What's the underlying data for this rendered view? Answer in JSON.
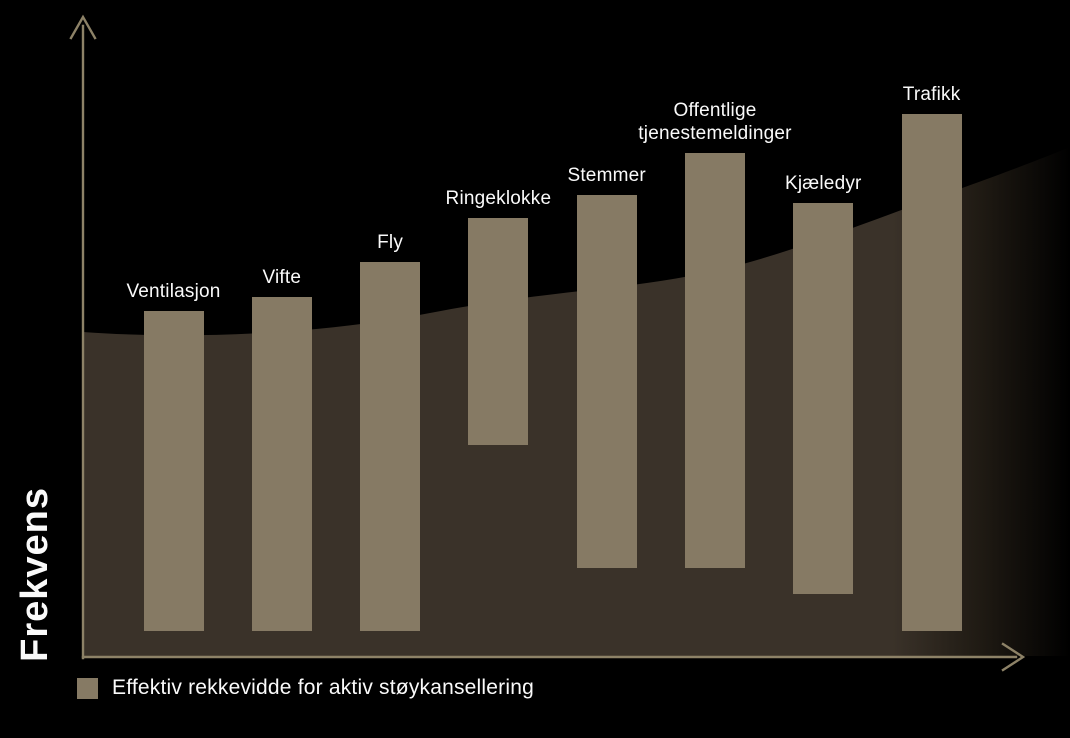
{
  "chart_data": {
    "type": "bar",
    "subtype": "floating-range-bars",
    "title": "",
    "xlabel": "",
    "ylabel": "Frekvens",
    "value_scale": "normalized 0-1 of y-axis height (axis has no numeric ticks)",
    "categories": [
      "Ventilasjon",
      "Vifte",
      "Fly",
      "Ringeklokke",
      "Stemmer",
      "Offentlige tjenestemeldinger",
      "Kjæledyr",
      "Trafikk"
    ],
    "series": [
      {
        "name": "Effektiv rekkevidde for aktiv støykansellering",
        "ranges": [
          {
            "low": 0.041,
            "high": 0.542
          },
          {
            "low": 0.041,
            "high": 0.563
          },
          {
            "low": 0.041,
            "high": 0.618
          },
          {
            "low": 0.332,
            "high": 0.687
          },
          {
            "low": 0.139,
            "high": 0.723
          },
          {
            "low": 0.139,
            "high": 0.789
          },
          {
            "low": 0.099,
            "high": 0.71
          },
          {
            "low": 0.041,
            "high": 0.85
          }
        ]
      }
    ],
    "axis": {
      "y_ticks": "none",
      "x_ticks": "none",
      "grid": "off",
      "arrows": "both axes end in open arrowheads"
    },
    "legend": {
      "position": "bottom-left",
      "label": "Effektiv rekkevidde for aktiv støykansellering"
    },
    "background_region": {
      "name": "ambient-noise-spectrum-region",
      "description": "dark brown region rising from left to right behind the bars, fading to black at the right edge"
    },
    "colors": {
      "bar": "#867a64",
      "background_region": "#3a3229",
      "axis": "#8d8267",
      "label_text": "#fafafa",
      "background": "#000000"
    }
  }
}
